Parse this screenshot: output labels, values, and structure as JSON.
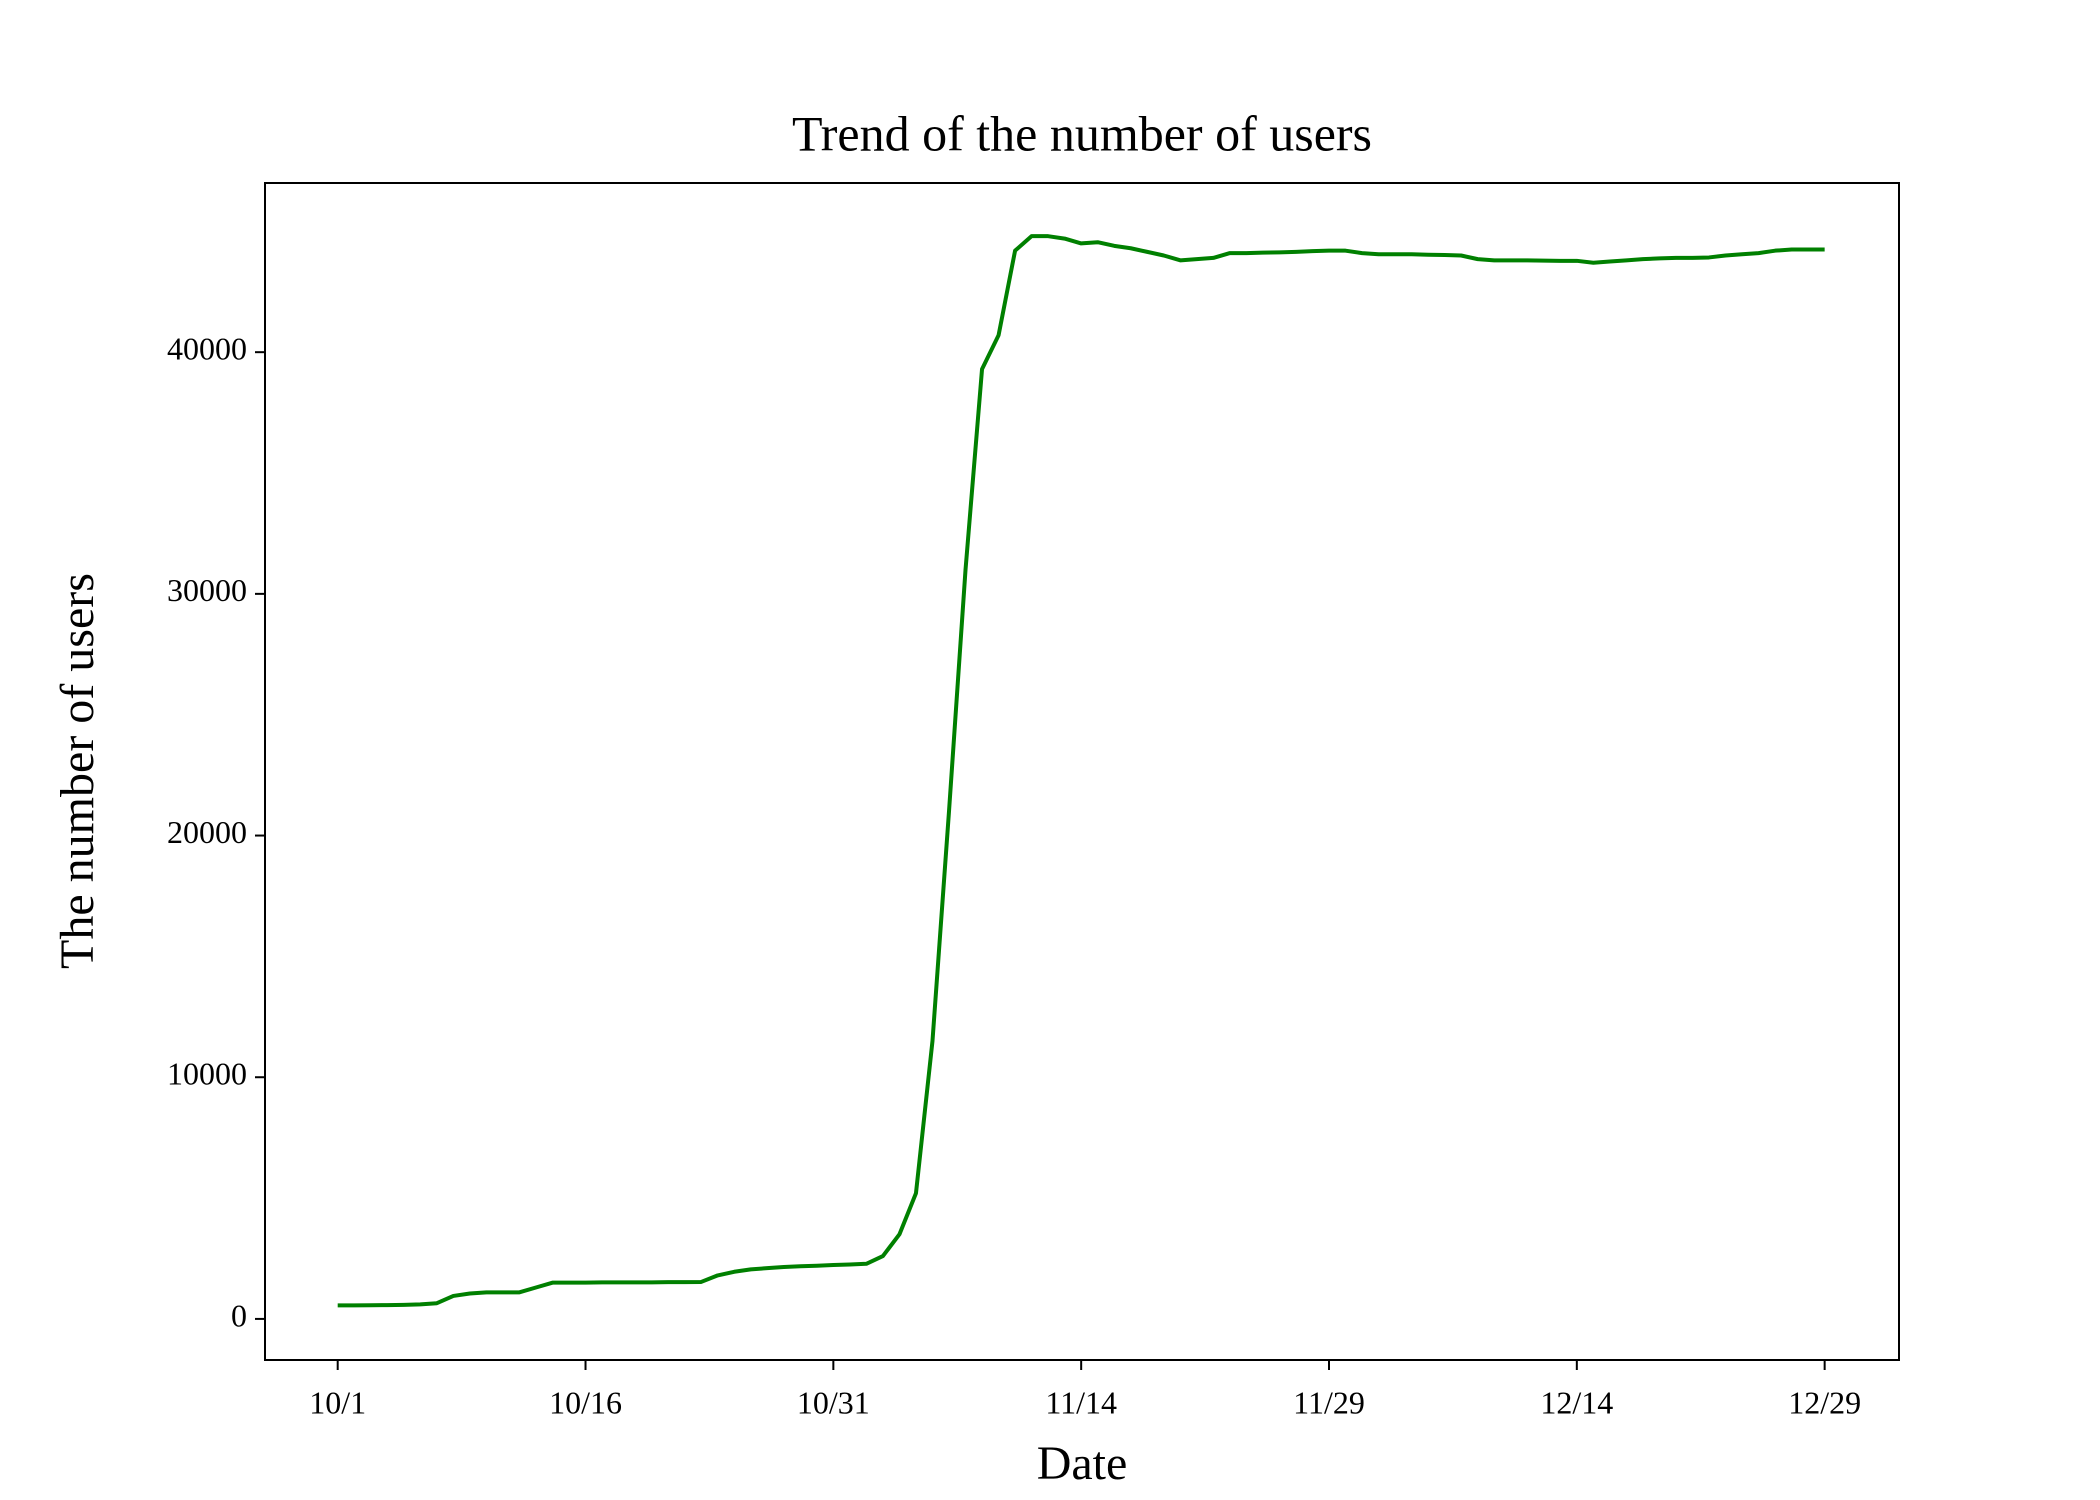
{
  "chart_data": {
    "type": "line",
    "title": "Trend of the number of users",
    "x_label": "Date",
    "y_label": "The number of users",
    "categories": [
      "10/1",
      null,
      null,
      null,
      null,
      null,
      null,
      null,
      null,
      null,
      null,
      null,
      null,
      null,
      null,
      "10/16",
      null,
      null,
      null,
      null,
      null,
      null,
      null,
      null,
      null,
      null,
      null,
      null,
      null,
      null,
      "10/31",
      null,
      null,
      null,
      null,
      null,
      null,
      null,
      null,
      null,
      null,
      null,
      null,
      null,
      null,
      "11/14",
      null,
      null,
      null,
      null,
      null,
      null,
      null,
      null,
      null,
      null,
      null,
      null,
      null,
      null,
      "11/29",
      null,
      null,
      null,
      null,
      null,
      null,
      null,
      null,
      null,
      null,
      null,
      null,
      null,
      null,
      "12/14",
      null,
      null,
      null,
      null,
      null,
      null,
      null,
      null,
      null,
      null,
      null,
      null,
      null,
      null,
      "12/29"
    ],
    "series": [
      {
        "name": "users",
        "color": "#008000",
        "values": [
          560,
          560,
          565,
          570,
          580,
          600,
          650,
          950,
          1050,
          1100,
          1100,
          1100,
          1300,
          1500,
          1500,
          1500,
          1510,
          1510,
          1510,
          1510,
          1520,
          1520,
          1530,
          1800,
          1950,
          2050,
          2100,
          2150,
          2180,
          2200,
          2230,
          2250,
          2280,
          2600,
          3500,
          5200,
          11500,
          21000,
          31000,
          39300,
          40700,
          44200,
          44800,
          44800,
          44700,
          44500,
          44550,
          44400,
          44300,
          44150,
          44000,
          43800,
          43850,
          43900,
          44100,
          44100,
          44120,
          44130,
          44150,
          44180,
          44200,
          44200,
          44100,
          44050,
          44050,
          44050,
          44030,
          44020,
          44000,
          43850,
          43800,
          43800,
          43800,
          43790,
          43780,
          43780,
          43700,
          43750,
          43800,
          43850,
          43880,
          43900,
          43900,
          43920,
          44000,
          44050,
          44100,
          44200,
          44250,
          44250,
          44250
        ]
      }
    ],
    "ylim": [
      -1700,
      47000
    ],
    "yticks": [
      0,
      10000,
      20000,
      30000,
      40000
    ]
  }
}
